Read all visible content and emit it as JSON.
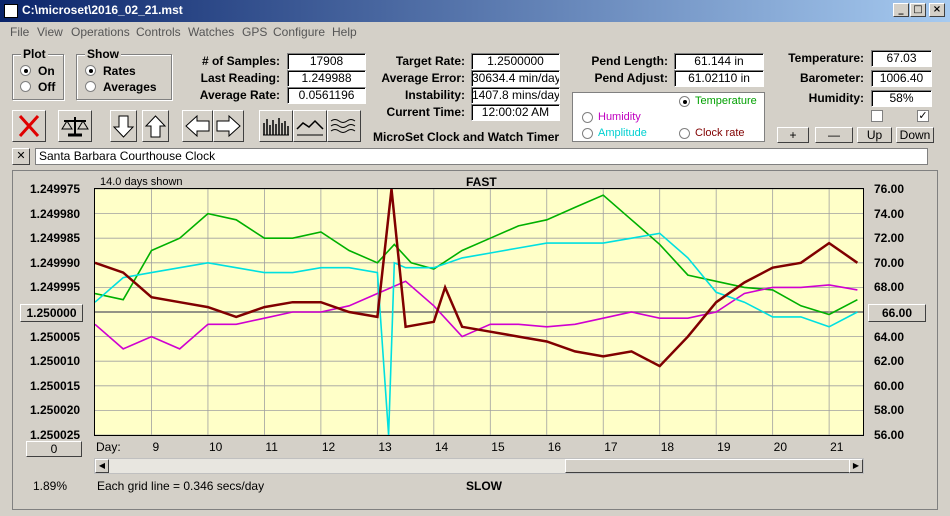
{
  "window": {
    "title": "C:\\microset\\2016_02_21.mst"
  },
  "menu": [
    "File",
    "View",
    "Operations",
    "Controls",
    "Watches",
    "GPS",
    "Configure",
    "Help"
  ],
  "plot_group": {
    "title": "Plot",
    "on": "On",
    "off": "Off",
    "selected": "On"
  },
  "show_group": {
    "title": "Show",
    "rates": "Rates",
    "averages": "Averages",
    "selected": "Rates"
  },
  "stats": [
    {
      "label": "# of Samples:",
      "value": "17908"
    },
    {
      "label": "Last Reading:",
      "value": "1.249988"
    },
    {
      "label": "Average Rate:",
      "value": "0.0561196"
    }
  ],
  "rates": [
    {
      "label": "Target Rate:",
      "value": "1.2500000"
    },
    {
      "label": "Average Error:",
      "value": "30634.4 min/day"
    },
    {
      "label": "Instability:",
      "value": "1407.8 mins/day"
    },
    {
      "label": "Current Time:",
      "value": "12:00:02 AM"
    }
  ],
  "pend": [
    {
      "label": "Pend Length:",
      "value": "61.144 in"
    },
    {
      "label": "Pend Adjust:",
      "value": "61.02110 in"
    }
  ],
  "env": [
    {
      "label": "Temperature:",
      "value": "67.03"
    },
    {
      "label": "Barometer:",
      "value": "1006.40"
    },
    {
      "label": "Humidity:",
      "value": "58%"
    }
  ],
  "app_subtitle": "MicroSet Clock and Watch Timer",
  "right_axis_select": {
    "temperature": "Temperature",
    "humidity": "Humidity",
    "amplitude": "Amplitude",
    "clock_rate": "Clock rate",
    "selected": "Temperature"
  },
  "small_buttons": {
    "plus": "+",
    "minus": "—",
    "up": "Up",
    "down": "Down"
  },
  "checkboxes": [
    {
      "checked": false
    },
    {
      "checked": true
    }
  ],
  "clock_name": "Santa Barbara Courthouse Clock",
  "close_x": "✕",
  "chart_header": {
    "days_shown": "14.0 days shown",
    "fast": "FAST",
    "slow": "SLOW"
  },
  "center_left": "1.250000",
  "center_right": "66.00",
  "bottom_left_btn": "0",
  "percent": "1.89%",
  "grid_note": "Each grid line = 0.346 secs/day",
  "colors": {
    "temperature": "#00b000",
    "humidity": "#d000d0",
    "amplitude": "#00e0e0",
    "rate": "#800000",
    "plot_bg": "#ffffc8"
  },
  "chart_data": {
    "type": "line",
    "x_label": "Day:",
    "x_ticks": [
      "9",
      "10",
      "11",
      "12",
      "13",
      "14",
      "15",
      "16",
      "17",
      "18",
      "19",
      "20",
      "21"
    ],
    "x_range": [
      8,
      21.6
    ],
    "y_left_ticks": [
      "1.249975",
      "1.249980",
      "1.249985",
      "1.249990",
      "1.249995",
      "1.250000",
      "1.250005",
      "1.250010",
      "1.250015",
      "1.250020",
      "1.250025"
    ],
    "y_left_range": [
      1.249975,
      1.250025
    ],
    "y_right_ticks": [
      "76.00",
      "74.00",
      "72.00",
      "70.00",
      "68.00",
      "66.00",
      "64.00",
      "62.00",
      "60.00",
      "58.00",
      "56.00"
    ],
    "y_right_range": [
      56,
      76
    ],
    "series": [
      {
        "name": "Temperature",
        "color": "#00b000",
        "x": [
          8,
          8.5,
          9,
          9.5,
          10,
          10.5,
          11,
          11.5,
          12,
          12.5,
          13,
          13.3,
          13.6,
          14,
          14.5,
          15,
          15.5,
          16,
          16.5,
          17,
          17.5,
          18,
          18.5,
          19,
          19.5,
          20,
          20.5,
          21,
          21.5
        ],
        "values": [
          67.5,
          67,
          71,
          72,
          74,
          73.5,
          72,
          72,
          72.5,
          71,
          70,
          71.5,
          70,
          69.5,
          71,
          72,
          73,
          73.5,
          74.5,
          75.5,
          73.5,
          71.5,
          69,
          68.5,
          68,
          67.8,
          66.5,
          65.8,
          67
        ]
      },
      {
        "name": "Humidity",
        "color": "#d000d0",
        "x": [
          8,
          8.5,
          9,
          9.5,
          10,
          10.5,
          11,
          11.5,
          12,
          12.5,
          13,
          13.5,
          14,
          14.5,
          15,
          15.5,
          16,
          16.5,
          17,
          17.5,
          18,
          18.5,
          19,
          19.5,
          20,
          20.5,
          21,
          21.5
        ],
        "values": [
          65,
          63,
          64,
          63,
          65,
          65,
          65.5,
          66,
          66,
          66.5,
          67.5,
          68.5,
          66.5,
          64,
          65,
          65,
          64.8,
          65,
          65.5,
          66,
          65.5,
          65.5,
          66,
          67.5,
          68,
          68,
          68.2,
          67.8
        ]
      },
      {
        "name": "Amplitude",
        "color": "#00e0e0",
        "x": [
          8,
          8.5,
          9,
          9.5,
          10,
          10.5,
          11,
          11.5,
          12,
          12.5,
          13,
          13.2,
          13.3,
          13.5,
          14,
          14.5,
          15,
          15.5,
          16,
          16.5,
          17,
          17.5,
          18,
          18.5,
          19,
          19.5,
          20,
          20.5,
          21,
          21.5
        ],
        "values": [
          1.249998,
          1.249993,
          1.249992,
          1.249991,
          1.24999,
          1.249991,
          1.249992,
          1.249992,
          1.249991,
          1.249991,
          1.249992,
          1.250025,
          1.24999,
          1.249991,
          1.249991,
          1.249989,
          1.249988,
          1.249987,
          1.249986,
          1.249986,
          1.249986,
          1.249985,
          1.249984,
          1.249989,
          1.249996,
          1.249998,
          1.250001,
          1.250001,
          1.250003,
          1.25
        ]
      },
      {
        "name": "Clock rate",
        "color": "#800000",
        "x": [
          8,
          8.5,
          9,
          9.5,
          10,
          10.5,
          11,
          11.5,
          12,
          12.5,
          13,
          13.25,
          13.5,
          14,
          14.2,
          14.5,
          15,
          15.5,
          16,
          16.5,
          17,
          17.5,
          18,
          18.5,
          19,
          19.5,
          20,
          20.5,
          21,
          21.5
        ],
        "values": [
          1.24999,
          1.249992,
          1.249997,
          1.249998,
          1.249999,
          1.250001,
          1.249999,
          1.249998,
          1.249998,
          1.25,
          1.250001,
          1.249975,
          1.250003,
          1.250002,
          1.249995,
          1.250003,
          1.250004,
          1.250005,
          1.250006,
          1.250008,
          1.250009,
          1.250008,
          1.250011,
          1.250005,
          1.249998,
          1.249994,
          1.249991,
          1.24999,
          1.249986,
          1.24999
        ]
      }
    ]
  }
}
